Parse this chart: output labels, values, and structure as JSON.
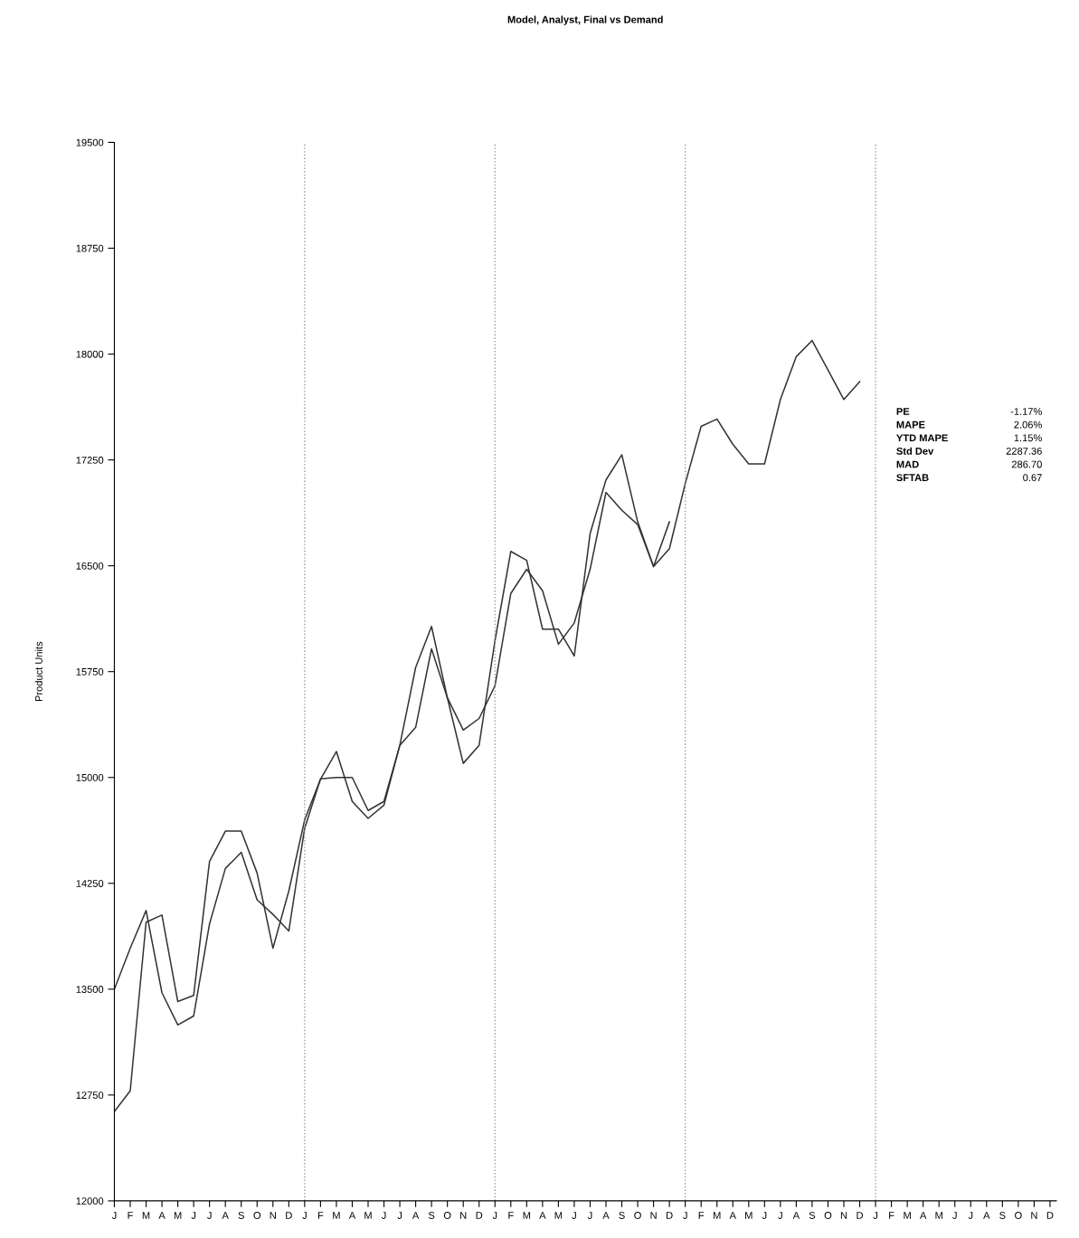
{
  "chart_data": {
    "type": "line",
    "title": "Model, Analyst, Final vs Demand",
    "ylabel": "Product Units",
    "categories": [
      "J",
      "F",
      "M",
      "A",
      "M",
      "J",
      "J",
      "A",
      "S",
      "O",
      "N",
      "D",
      "J",
      "F",
      "M",
      "A",
      "M",
      "J",
      "J",
      "A",
      "S",
      "O",
      "N",
      "D",
      "J",
      "F",
      "M",
      "A",
      "M",
      "J",
      "J",
      "A",
      "S",
      "O",
      "N",
      "D",
      "J",
      "F",
      "M",
      "A",
      "M",
      "J",
      "J",
      "A",
      "S",
      "O",
      "N",
      "D",
      "J",
      "F",
      "M",
      "A",
      "M",
      "J",
      "J",
      "A",
      "S",
      "O",
      "N",
      "D"
    ],
    "ylim": [
      12000,
      19500
    ],
    "yticks": [
      12000,
      12750,
      13500,
      14250,
      15000,
      15750,
      16500,
      17250,
      18000,
      18750,
      19500
    ],
    "series": [
      {
        "color": "#333333",
        "values": [
          13500,
          13790,
          14057,
          13475,
          13247,
          13310,
          13962,
          14355,
          14470,
          14133,
          14030,
          13912,
          14640,
          14990,
          15000,
          15000,
          14766,
          14830,
          15228,
          15355,
          15912,
          15564,
          15336,
          15418,
          15650,
          16304,
          16475,
          16323,
          15944,
          16095,
          16475,
          17020,
          16893,
          16792,
          16494,
          16621,
          17083,
          17488,
          17540,
          17361,
          17222,
          17222,
          17678,
          17982,
          18096,
          17887,
          17678,
          17805,
          null,
          null,
          null,
          null,
          null,
          null,
          null,
          null,
          null,
          null,
          null,
          null
        ]
      },
      {
        "color": "#333333",
        "values": [
          12633,
          12780,
          13975,
          14025,
          13412,
          13456,
          14405,
          14620,
          14620,
          14323,
          13790,
          14196,
          14700,
          14988,
          15184,
          14830,
          14710,
          14804,
          15228,
          15780,
          16070,
          15564,
          15100,
          15228,
          15969,
          16602,
          16539,
          16051,
          16051,
          15861,
          16728,
          17108,
          17286,
          16811,
          16494,
          16811,
          null,
          null,
          null,
          null,
          null,
          null,
          null,
          null,
          null,
          null,
          null,
          null,
          null,
          null,
          null,
          null,
          null,
          null,
          null,
          null,
          null,
          null,
          null,
          null
        ]
      }
    ],
    "annotations": [
      "PE",
      "-1.17%",
      "MAPE",
      "2.06%",
      "YTD MAPE",
      "1.15%",
      "Std Dev",
      "2287.36",
      "MAD",
      "286.70",
      "SFTAB",
      "0.67"
    ],
    "line_style": "solid",
    "marker": "none",
    "grid": "x",
    "legend": false
  }
}
